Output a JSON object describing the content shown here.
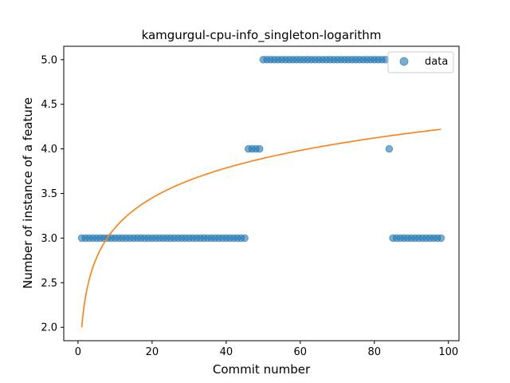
{
  "chart_data": {
    "type": "scatter",
    "title": "kamgurgul-cpu-info_singleton-logarithm",
    "xlabel": "Commit number",
    "ylabel": "Number of instance of a feature",
    "xlim": [
      -3.85,
      102.85
    ],
    "ylim": [
      1.85,
      5.15
    ],
    "xticks": [
      0,
      20,
      40,
      60,
      80,
      100
    ],
    "yticks": [
      2.0,
      2.5,
      3.0,
      3.5,
      4.0,
      4.5,
      5.0
    ],
    "ytick_labels": [
      "2.0",
      "2.5",
      "3.0",
      "3.5",
      "4.0",
      "4.5",
      "5.0"
    ],
    "grid": false,
    "legend": {
      "position": "top-right",
      "entries": [
        "data"
      ]
    },
    "colors": {
      "data": "#1f77b4",
      "fit": "#ff7f0e"
    },
    "series": [
      {
        "name": "data",
        "kind": "scatter",
        "x": [
          1,
          2,
          3,
          4,
          5,
          6,
          7,
          8,
          9,
          10,
          11,
          12,
          13,
          14,
          15,
          16,
          17,
          18,
          19,
          20,
          21,
          22,
          23,
          24,
          25,
          26,
          27,
          28,
          29,
          30,
          31,
          32,
          33,
          34,
          35,
          36,
          37,
          38,
          39,
          40,
          41,
          42,
          43,
          44,
          45,
          46,
          47,
          48,
          49,
          50,
          51,
          52,
          53,
          54,
          55,
          56,
          57,
          58,
          59,
          60,
          61,
          62,
          63,
          64,
          65,
          66,
          67,
          68,
          69,
          70,
          71,
          72,
          73,
          74,
          75,
          76,
          77,
          78,
          79,
          80,
          81,
          82,
          83,
          84,
          85,
          86,
          87,
          88,
          89,
          90,
          91,
          92,
          93,
          94,
          95,
          96,
          97,
          98
        ],
        "y": [
          3,
          3,
          3,
          3,
          3,
          3,
          3,
          3,
          3,
          3,
          3,
          3,
          3,
          3,
          3,
          3,
          3,
          3,
          3,
          3,
          3,
          3,
          3,
          3,
          3,
          3,
          3,
          3,
          3,
          3,
          3,
          3,
          3,
          3,
          3,
          3,
          3,
          3,
          3,
          3,
          3,
          3,
          3,
          3,
          3,
          4,
          4,
          4,
          4,
          5,
          5,
          5,
          5,
          5,
          5,
          5,
          5,
          5,
          5,
          5,
          5,
          5,
          5,
          5,
          5,
          5,
          5,
          5,
          5,
          5,
          5,
          5,
          5,
          5,
          5,
          5,
          5,
          5,
          5,
          5,
          5,
          5,
          5,
          4,
          3,
          3,
          3,
          3,
          3,
          3,
          3,
          3,
          3,
          3,
          3,
          3,
          3,
          3
        ]
      },
      {
        "kind": "line",
        "model": "logarithmic",
        "x_range": [
          1,
          98
        ],
        "y_at_start": 2.0,
        "y_at_end": 4.22
      }
    ]
  }
}
